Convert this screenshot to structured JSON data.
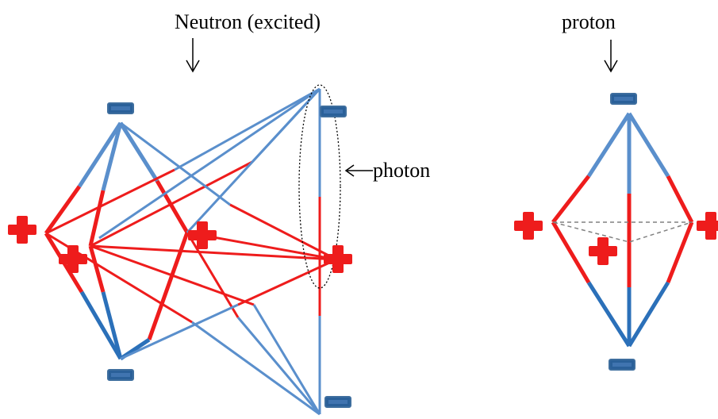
{
  "labels": {
    "neutron_title": "Neutron (excited)",
    "proton_title": "proton",
    "photon": "photon"
  },
  "icons": {
    "minus": "minus-charge-icon",
    "plus": "plus-charge-icon",
    "arrow": "arrow-icon"
  },
  "colors": {
    "blue_light": "#5a8fcc",
    "blue_dark": "#2b70b9",
    "red": "#ee1c1c",
    "minus_fill": "#2a6099",
    "minus_stroke": "#3e6e9e",
    "plus": "#ee1c1c",
    "dashed": "#808080",
    "ellipse": "#000000"
  }
}
